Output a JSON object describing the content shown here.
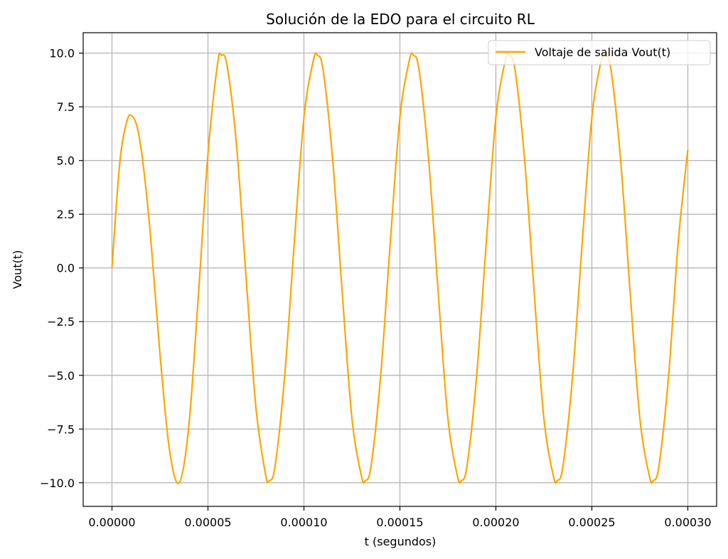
{
  "chart_data": {
    "type": "line",
    "title": "Solución de la EDO para el circuito RL",
    "xlabel": "t (segundos)",
    "ylabel": "Vout(t)",
    "xlim": [
      -1.5e-05,
      0.000315
    ],
    "ylim": [
      -11.1,
      10.95
    ],
    "x_ticks": [
      0.0,
      5e-05,
      0.0001,
      0.00015,
      0.0002,
      0.00025,
      0.0003
    ],
    "x_tick_labels": [
      "0.00000",
      "0.00005",
      "0.00010",
      "0.00015",
      "0.00020",
      "0.00025",
      "0.00030"
    ],
    "y_ticks": [
      -10.0,
      -7.5,
      -5.0,
      -2.5,
      0.0,
      2.5,
      5.0,
      7.5,
      10.0
    ],
    "y_tick_labels": [
      "−10.0",
      "−7.5",
      "−5.0",
      "−2.5",
      "0.0",
      "2.5",
      "5.0",
      "7.5",
      "10.0"
    ],
    "grid": true,
    "legend_position": "top-right",
    "series": [
      {
        "name": "Voltaje de salida Vout(t)",
        "color": "#FFA500",
        "x": [
          0.0,
          3e-06,
          5e-06,
          8e-06,
          1e-05,
          1.3e-05,
          1.6e-05,
          2e-05,
          2.5e-05,
          3e-05,
          3.5e-05,
          4e-05,
          4.5e-05,
          5e-05,
          5.5e-05,
          5.7e-05,
          6e-05,
          6.5e-05,
          7e-05,
          7.5e-05,
          8e-05,
          8.2e-05,
          8.5e-05,
          9e-05,
          9.5e-05,
          0.0001,
          0.000105,
          0.000107,
          0.00011,
          0.000115,
          0.00012,
          0.000125,
          0.00013,
          0.000132,
          0.000135,
          0.00014,
          0.000145,
          0.00015,
          0.000155,
          0.000157,
          0.00016,
          0.000165,
          0.00017,
          0.000175,
          0.00018,
          0.000182,
          0.000185,
          0.00019,
          0.000195,
          0.0002,
          0.000205,
          0.000207,
          0.00021,
          0.000215,
          0.00022,
          0.000225,
          0.00023,
          0.000232,
          0.000235,
          0.00024,
          0.000245,
          0.00025,
          0.000255,
          0.000257,
          0.00026,
          0.000265,
          0.00027,
          0.000275,
          0.00028,
          0.000282,
          0.000285,
          0.00029,
          0.000295,
          0.0003
        ],
        "y": [
          0.0,
          3.8,
          5.6,
          6.9,
          7.1,
          6.6,
          5.0,
          1.6,
          -4.0,
          -8.5,
          -10.0,
          -7.4,
          -1.3,
          5.3,
          9.5,
          9.9,
          9.4,
          5.6,
          -0.6,
          -6.5,
          -9.6,
          -9.9,
          -9.2,
          -5.0,
          1.2,
          7.0,
          9.7,
          9.9,
          9.2,
          5.0,
          -1.2,
          -7.0,
          -9.7,
          -9.9,
          -9.2,
          -5.0,
          1.2,
          7.0,
          9.7,
          9.9,
          9.2,
          5.0,
          -1.2,
          -7.0,
          -9.7,
          -9.9,
          -9.2,
          -5.0,
          1.2,
          7.0,
          9.7,
          9.9,
          9.2,
          5.0,
          -1.2,
          -7.0,
          -9.7,
          -9.9,
          -9.2,
          -5.0,
          1.2,
          7.0,
          9.7,
          9.9,
          9.2,
          5.0,
          -1.2,
          -7.0,
          -9.7,
          -9.9,
          -9.2,
          -5.0,
          1.2,
          5.5
        ]
      }
    ]
  }
}
